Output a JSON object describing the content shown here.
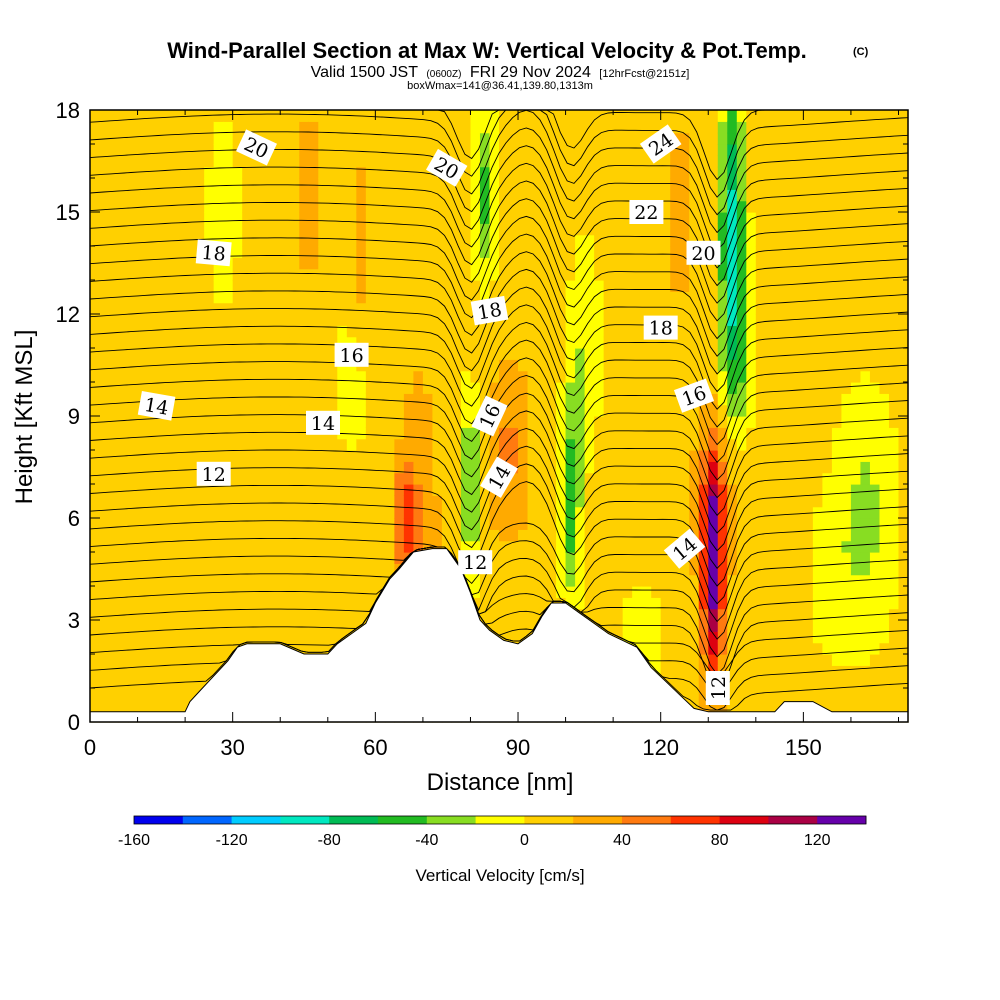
{
  "title": {
    "main": "Wind-Parallel Section at Max W: Vertical Velocity & Pot.Temp.",
    "copyright": "(C)",
    "valid_prefix": "Valid 1500 JST",
    "valid_utc": "(0600Z)",
    "valid_date": "FRI 29 Nov 2024",
    "forecast": "[12hrFcst@2151z]",
    "box_info": "boxWmax=141@36.41,139.80,1313m"
  },
  "chart_data": {
    "type": "heatmap",
    "xlabel": "Distance [nm]",
    "ylabel": "Height [Kft MSL]",
    "xlim": [
      0,
      172
    ],
    "ylim": [
      0,
      18
    ],
    "x_ticks": [
      "0",
      "30",
      "60",
      "90",
      "120",
      "150"
    ],
    "y_ticks": [
      "0",
      "3",
      "6",
      "9",
      "12",
      "15",
      "18"
    ],
    "colorbar": {
      "title": "Vertical Velocity [cm/s]",
      "range": [
        -160,
        140
      ],
      "step": 20,
      "tick_labels": [
        "-160",
        "-120",
        "-80",
        "-40",
        "0",
        "40",
        "80",
        "120"
      ],
      "colors": [
        "#0000ee",
        "#0066ff",
        "#00ccff",
        "#00e8c0",
        "#00bb55",
        "#22bb22",
        "#88dd22",
        "#ffff00",
        "#ffd000",
        "#ffaa00",
        "#ff7a10",
        "#ff3300",
        "#dd0011",
        "#aa0044",
        "#6600aa"
      ]
    },
    "background_value": 10,
    "vertical_velocity_features": [
      {
        "x_center": 69,
        "y_center": 5,
        "x_half_width": 4.5,
        "y_half_height": 5.5,
        "value": 45
      },
      {
        "x_center": 66,
        "y_center": 6,
        "x_half_width": 2.0,
        "y_half_height": 1.8,
        "value": 65
      },
      {
        "x_center": 46,
        "y_center": 15.5,
        "x_half_width": 3.0,
        "y_half_height": 3.0,
        "value": 35
      },
      {
        "x_center": 57,
        "y_center": 14,
        "x_half_width": 2.5,
        "y_half_height": 3.0,
        "value": 35
      },
      {
        "x_center": 88,
        "y_center": 8,
        "x_half_width": 5.0,
        "y_half_height": 3.0,
        "value": 45
      },
      {
        "x_center": 28,
        "y_center": 15,
        "x_half_width": 5.0,
        "y_half_height": 4.0,
        "value": -10
      },
      {
        "x_center": 55,
        "y_center": 10,
        "x_half_width": 6.0,
        "y_half_height": 4.0,
        "value": -5
      },
      {
        "x_center": 80,
        "y_center": 7,
        "x_half_width": 2.2,
        "y_half_height": 3.0,
        "value": -55
      },
      {
        "x_center": 83,
        "y_center": 15.5,
        "x_half_width": 3.0,
        "y_half_height": 3.0,
        "value": -45
      },
      {
        "x_center": 101,
        "y_center": 6.5,
        "x_half_width": 2.5,
        "y_half_height": 3.5,
        "value": -55
      },
      {
        "x_center": 104,
        "y_center": 11,
        "x_half_width": 4.0,
        "y_half_height": 4.0,
        "value": -20
      },
      {
        "x_center": 131,
        "y_center": 4.5,
        "x_half_width": 2.6,
        "y_half_height": 3.8,
        "value": 130
      },
      {
        "x_center": 131,
        "y_center": 6.5,
        "x_half_width": 5.0,
        "y_half_height": 3.0,
        "value": 40
      },
      {
        "x_center": 135,
        "y_center": 15,
        "x_half_width": 3.0,
        "y_half_height": 4.5,
        "value": -80
      },
      {
        "x_center": 136,
        "y_center": 11,
        "x_half_width": 4.0,
        "y_half_height": 3.0,
        "value": -45
      },
      {
        "x_center": 124,
        "y_center": 15,
        "x_half_width": 4.0,
        "y_half_height": 3.5,
        "value": 30
      },
      {
        "x_center": 163,
        "y_center": 6,
        "x_half_width": 8.0,
        "y_half_height": 4.5,
        "value": -25
      },
      {
        "x_center": 155,
        "y_center": 4,
        "x_half_width": 6.0,
        "y_half_height": 3.0,
        "value": -5
      },
      {
        "x_center": 116,
        "y_center": 2.5,
        "x_half_width": 8.0,
        "y_half_height": 3.0,
        "value": -5
      }
    ],
    "terrain": {
      "x": [
        0,
        20,
        21,
        23,
        25,
        27,
        29,
        31,
        33,
        36,
        40,
        45,
        50,
        52,
        55,
        58,
        60,
        63,
        65,
        68,
        72,
        75,
        78,
        80,
        82,
        84,
        87,
        90,
        93,
        95,
        97,
        100,
        103,
        106,
        109,
        112,
        115,
        118,
        121,
        124,
        127,
        130,
        133,
        136,
        140,
        144,
        146,
        150,
        152,
        156,
        160,
        165,
        172
      ],
      "height": [
        0.3,
        0.3,
        0.6,
        0.9,
        1.2,
        1.5,
        1.8,
        2.2,
        2.3,
        2.3,
        2.3,
        2.0,
        2.0,
        2.3,
        2.6,
        2.9,
        3.5,
        4.2,
        4.5,
        5.0,
        5.1,
        5.1,
        4.5,
        3.8,
        3.0,
        2.7,
        2.4,
        2.3,
        2.6,
        3.1,
        3.5,
        3.5,
        3.2,
        2.9,
        2.6,
        2.4,
        2.2,
        1.6,
        1.2,
        0.8,
        0.4,
        0.3,
        0.3,
        0.3,
        0.3,
        0.3,
        0.6,
        0.6,
        0.6,
        0.3,
        0.3,
        0.3,
        0.3
      ]
    },
    "theta_contour_labels": [
      {
        "text": "20",
        "x": 35,
        "y": 16.9,
        "angle": 25
      },
      {
        "text": "20",
        "x": 75,
        "y": 16.3,
        "angle": 30
      },
      {
        "text": "24",
        "x": 120,
        "y": 17.0,
        "angle": -35
      },
      {
        "text": "22",
        "x": 117,
        "y": 15.0,
        "angle": 0
      },
      {
        "text": "20",
        "x": 129,
        "y": 13.8,
        "angle": 0
      },
      {
        "text": "18",
        "x": 26,
        "y": 13.8,
        "angle": 5
      },
      {
        "text": "18",
        "x": 84,
        "y": 12.1,
        "angle": -10
      },
      {
        "text": "18",
        "x": 120,
        "y": 11.6,
        "angle": 0
      },
      {
        "text": "16",
        "x": 55,
        "y": 10.8,
        "angle": 0
      },
      {
        "text": "16",
        "x": 84,
        "y": 9.0,
        "angle": -65
      },
      {
        "text": "16",
        "x": 127,
        "y": 9.6,
        "angle": -20
      },
      {
        "text": "14",
        "x": 14,
        "y": 9.3,
        "angle": 10
      },
      {
        "text": "14",
        "x": 49,
        "y": 8.8,
        "angle": 0
      },
      {
        "text": "14",
        "x": 86,
        "y": 7.2,
        "angle": -60
      },
      {
        "text": "14",
        "x": 125,
        "y": 5.1,
        "angle": -40
      },
      {
        "text": "12",
        "x": 26,
        "y": 7.3,
        "angle": 0
      },
      {
        "text": "12",
        "x": 81,
        "y": 4.7,
        "angle": 0
      },
      {
        "text": "12",
        "x": 132,
        "y": 1.0,
        "angle": -90
      }
    ]
  }
}
